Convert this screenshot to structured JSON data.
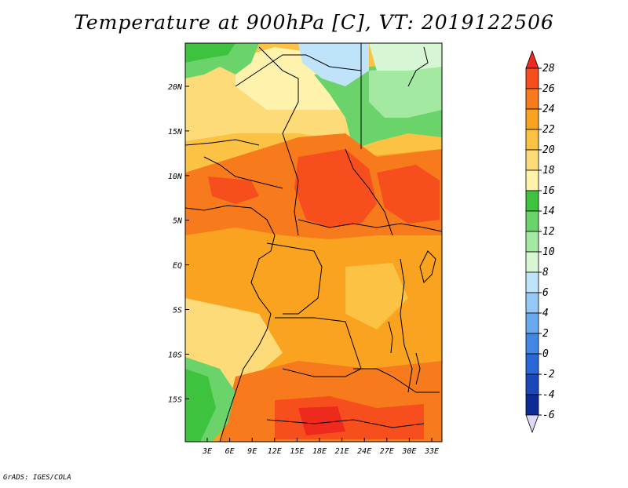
{
  "title": "Temperature at 900hPa [C], VT: 2019122506",
  "credit": "GrADS: IGES/COLA",
  "map": {
    "lon_ticks": [
      "3E",
      "6E",
      "9E",
      "12E",
      "15E",
      "18E",
      "21E",
      "24E",
      "27E",
      "30E",
      "33E"
    ],
    "lat_ticks": [
      "20N",
      "15N",
      "10N",
      "5N",
      "EQ",
      "5S",
      "10S",
      "15S"
    ]
  },
  "colorbar": {
    "labels": [
      "28",
      "26",
      "24",
      "22",
      "20",
      "18",
      "16",
      "14",
      "12",
      "10",
      "8",
      "6",
      "4",
      "2",
      "0",
      "-2",
      "-4",
      "-6"
    ],
    "colors": [
      "#ee2a1e",
      "#f64e1c",
      "#f77b1c",
      "#f9a321",
      "#fbc243",
      "#fcdb78",
      "#fef2ad",
      "#3ec33e",
      "#6ad46a",
      "#a4e9a2",
      "#d7f7d4",
      "#bfe4fa",
      "#94c8f5",
      "#69a9ee",
      "#4387e4",
      "#2a68da",
      "#1a48bb",
      "#0c2a94",
      "#0a1664"
    ]
  },
  "chart_data": {
    "type": "heatmap",
    "title": "Temperature at 900hPa [C], VT: 2019122506",
    "xlabel": "",
    "ylabel": "",
    "x_ticks": [
      "3E",
      "6E",
      "9E",
      "12E",
      "15E",
      "18E",
      "21E",
      "24E",
      "27E",
      "30E",
      "33E"
    ],
    "y_ticks": [
      "20N",
      "15N",
      "10N",
      "5N",
      "EQ",
      "5S",
      "10S",
      "15S"
    ],
    "colorbar_range": [
      -6,
      28
    ],
    "colorbar_step": 2,
    "features": {
      "cold_northeast": "about 8-10 C over northern Sudan/Egypt (~20N, 20-25E)",
      "warm_belt": "24-26 C across 5-10N (Chad, CAR, South Sudan)",
      "warm_south": "24-28 C near 15-18S, 15-25E",
      "cool_southwest_coast": "14-16 C off Angola/Namibia (~15S, 0-5E)"
    }
  }
}
